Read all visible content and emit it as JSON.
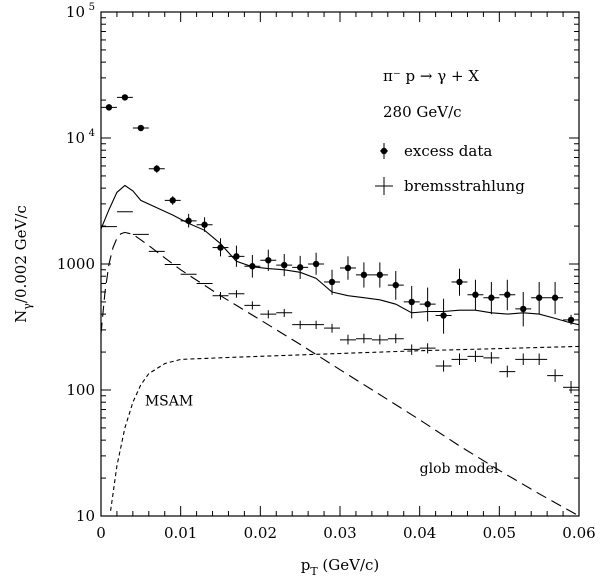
{
  "chart_data": {
    "type": "scatter",
    "title": "",
    "xlabel": "p_T (GeV/c)",
    "ylabel": "N_γ/0.002 GeV/c",
    "xlim": [
      0,
      0.06
    ],
    "ylim": [
      10,
      100000
    ],
    "yscale": "log",
    "x_ticks": [
      {
        "value": 0,
        "label": "0"
      },
      {
        "value": 0.01,
        "label": "0.01"
      },
      {
        "value": 0.02,
        "label": "0.02"
      },
      {
        "value": 0.03,
        "label": "0.03"
      },
      {
        "value": 0.04,
        "label": "0.04"
      },
      {
        "value": 0.05,
        "label": "0.05"
      },
      {
        "value": 0.06,
        "label": "0.06"
      }
    ],
    "y_ticks": [
      {
        "value": 10,
        "label": "10"
      },
      {
        "value": 100,
        "label": "100"
      },
      {
        "value": 1000,
        "label": "1000"
      },
      {
        "value": 10000,
        "label": "10",
        "exp": "4"
      },
      {
        "value": 100000,
        "label": "10",
        "exp": "5"
      }
    ],
    "legend": {
      "placement": "top-right",
      "lines": [
        "π⁻ p → γ + X",
        "280 GeV/c"
      ],
      "entries": [
        {
          "label": "excess data",
          "marker": "dot-with-errorbar"
        },
        {
          "label": "bremsstrahlung",
          "marker": "cross"
        }
      ]
    },
    "annotations": [
      {
        "text": "MSAM",
        "x": 0.0055,
        "y": 75
      },
      {
        "text": "glob model",
        "x": 0.04,
        "y": 22
      }
    ],
    "series": [
      {
        "name": "excess data",
        "style": "filled-circle",
        "x_err": 0.001,
        "points": [
          {
            "x": 0.001,
            "y": 17500,
            "lo": 16500,
            "hi": 18500
          },
          {
            "x": 0.003,
            "y": 21000,
            "lo": 20000,
            "hi": 22000
          },
          {
            "x": 0.005,
            "y": 12000,
            "lo": 11400,
            "hi": 12600
          },
          {
            "x": 0.007,
            "y": 5700,
            "lo": 5300,
            "hi": 6100
          },
          {
            "x": 0.009,
            "y": 3200,
            "lo": 2950,
            "hi": 3450
          },
          {
            "x": 0.011,
            "y": 2200,
            "lo": 1950,
            "hi": 2500
          },
          {
            "x": 0.013,
            "y": 2050,
            "lo": 1800,
            "hi": 2350
          },
          {
            "x": 0.015,
            "y": 1350,
            "lo": 1150,
            "hi": 1600
          },
          {
            "x": 0.017,
            "y": 1150,
            "lo": 950,
            "hi": 1400
          },
          {
            "x": 0.019,
            "y": 960,
            "lo": 780,
            "hi": 1180
          },
          {
            "x": 0.021,
            "y": 1070,
            "lo": 880,
            "hi": 1300
          },
          {
            "x": 0.023,
            "y": 980,
            "lo": 800,
            "hi": 1200
          },
          {
            "x": 0.025,
            "y": 940,
            "lo": 760,
            "hi": 1160
          },
          {
            "x": 0.027,
            "y": 1000,
            "lo": 820,
            "hi": 1230
          },
          {
            "x": 0.029,
            "y": 720,
            "lo": 570,
            "hi": 900
          },
          {
            "x": 0.031,
            "y": 930,
            "lo": 750,
            "hi": 1150
          },
          {
            "x": 0.033,
            "y": 820,
            "lo": 650,
            "hi": 1030
          },
          {
            "x": 0.035,
            "y": 820,
            "lo": 650,
            "hi": 1030
          },
          {
            "x": 0.037,
            "y": 680,
            "lo": 520,
            "hi": 880
          },
          {
            "x": 0.039,
            "y": 500,
            "lo": 370,
            "hi": 670
          },
          {
            "x": 0.041,
            "y": 480,
            "lo": 350,
            "hi": 650
          },
          {
            "x": 0.043,
            "y": 390,
            "lo": 280,
            "hi": 530
          },
          {
            "x": 0.045,
            "y": 720,
            "lo": 560,
            "hi": 920
          },
          {
            "x": 0.047,
            "y": 570,
            "lo": 430,
            "hi": 750
          },
          {
            "x": 0.049,
            "y": 540,
            "lo": 400,
            "hi": 720
          },
          {
            "x": 0.051,
            "y": 570,
            "lo": 430,
            "hi": 750
          },
          {
            "x": 0.053,
            "y": 440,
            "lo": 320,
            "hi": 600
          },
          {
            "x": 0.055,
            "y": 540,
            "lo": 400,
            "hi": 720
          },
          {
            "x": 0.057,
            "y": 540,
            "lo": 400,
            "hi": 720
          },
          {
            "x": 0.059,
            "y": 360,
            "lo": 330,
            "hi": 395
          }
        ]
      },
      {
        "name": "bremsstrahlung",
        "style": "cross",
        "x_err": 0.001,
        "points": [
          {
            "x": 0.001,
            "y": 1980,
            "lo": 1980,
            "hi": 1980
          },
          {
            "x": 0.003,
            "y": 2600,
            "lo": 2600,
            "hi": 2600
          },
          {
            "x": 0.005,
            "y": 1720,
            "lo": 1720,
            "hi": 1720
          },
          {
            "x": 0.007,
            "y": 1260,
            "lo": 1260,
            "hi": 1260
          },
          {
            "x": 0.009,
            "y": 990,
            "lo": 990,
            "hi": 990
          },
          {
            "x": 0.011,
            "y": 830,
            "lo": 830,
            "hi": 830
          },
          {
            "x": 0.013,
            "y": 700,
            "lo": 700,
            "hi": 700
          },
          {
            "x": 0.015,
            "y": 560,
            "lo": 520,
            "hi": 600
          },
          {
            "x": 0.017,
            "y": 580,
            "lo": 540,
            "hi": 620
          },
          {
            "x": 0.019,
            "y": 470,
            "lo": 435,
            "hi": 505
          },
          {
            "x": 0.021,
            "y": 400,
            "lo": 370,
            "hi": 430
          },
          {
            "x": 0.023,
            "y": 410,
            "lo": 380,
            "hi": 440
          },
          {
            "x": 0.025,
            "y": 330,
            "lo": 305,
            "hi": 355
          },
          {
            "x": 0.027,
            "y": 330,
            "lo": 305,
            "hi": 355
          },
          {
            "x": 0.029,
            "y": 310,
            "lo": 285,
            "hi": 335
          },
          {
            "x": 0.031,
            "y": 250,
            "lo": 230,
            "hi": 275
          },
          {
            "x": 0.033,
            "y": 255,
            "lo": 235,
            "hi": 280
          },
          {
            "x": 0.035,
            "y": 250,
            "lo": 230,
            "hi": 275
          },
          {
            "x": 0.037,
            "y": 255,
            "lo": 235,
            "hi": 280
          },
          {
            "x": 0.039,
            "y": 210,
            "lo": 190,
            "hi": 230
          },
          {
            "x": 0.041,
            "y": 215,
            "lo": 195,
            "hi": 235
          },
          {
            "x": 0.043,
            "y": 155,
            "lo": 140,
            "hi": 172
          },
          {
            "x": 0.045,
            "y": 175,
            "lo": 158,
            "hi": 195
          },
          {
            "x": 0.047,
            "y": 185,
            "lo": 167,
            "hi": 205
          },
          {
            "x": 0.049,
            "y": 180,
            "lo": 162,
            "hi": 200
          },
          {
            "x": 0.051,
            "y": 140,
            "lo": 126,
            "hi": 156
          },
          {
            "x": 0.053,
            "y": 175,
            "lo": 158,
            "hi": 195
          },
          {
            "x": 0.055,
            "y": 175,
            "lo": 158,
            "hi": 195
          },
          {
            "x": 0.057,
            "y": 130,
            "lo": 116,
            "hi": 146
          },
          {
            "x": 0.059,
            "y": 105,
            "lo": 94,
            "hi": 118
          }
        ]
      },
      {
        "name": "model total",
        "style": "solid",
        "points": [
          {
            "x": 0.0,
            "y": 1900
          },
          {
            "x": 0.001,
            "y": 2700
          },
          {
            "x": 0.002,
            "y": 3700
          },
          {
            "x": 0.003,
            "y": 4200
          },
          {
            "x": 0.004,
            "y": 3800
          },
          {
            "x": 0.005,
            "y": 3200
          },
          {
            "x": 0.007,
            "y": 2800
          },
          {
            "x": 0.009,
            "y": 2450
          },
          {
            "x": 0.011,
            "y": 2100
          },
          {
            "x": 0.013,
            "y": 1850
          },
          {
            "x": 0.015,
            "y": 1450
          },
          {
            "x": 0.017,
            "y": 1050
          },
          {
            "x": 0.019,
            "y": 950
          },
          {
            "x": 0.021,
            "y": 920
          },
          {
            "x": 0.023,
            "y": 900
          },
          {
            "x": 0.025,
            "y": 860
          },
          {
            "x": 0.027,
            "y": 770
          },
          {
            "x": 0.029,
            "y": 600
          },
          {
            "x": 0.031,
            "y": 560
          },
          {
            "x": 0.033,
            "y": 540
          },
          {
            "x": 0.035,
            "y": 520
          },
          {
            "x": 0.037,
            "y": 480
          },
          {
            "x": 0.039,
            "y": 410
          },
          {
            "x": 0.041,
            "y": 420
          },
          {
            "x": 0.043,
            "y": 420
          },
          {
            "x": 0.045,
            "y": 430
          },
          {
            "x": 0.047,
            "y": 430
          },
          {
            "x": 0.049,
            "y": 410
          },
          {
            "x": 0.051,
            "y": 400
          },
          {
            "x": 0.053,
            "y": 410
          },
          {
            "x": 0.055,
            "y": 400
          },
          {
            "x": 0.057,
            "y": 370
          },
          {
            "x": 0.059,
            "y": 340
          },
          {
            "x": 0.06,
            "y": 330
          }
        ]
      },
      {
        "name": "glob model",
        "style": "long-dash",
        "points": [
          {
            "x": 0.0,
            "y": 280
          },
          {
            "x": 0.0005,
            "y": 600
          },
          {
            "x": 0.001,
            "y": 1000
          },
          {
            "x": 0.0015,
            "y": 1350
          },
          {
            "x": 0.002,
            "y": 1600
          },
          {
            "x": 0.0025,
            "y": 1740
          },
          {
            "x": 0.003,
            "y": 1780
          },
          {
            "x": 0.004,
            "y": 1720
          },
          {
            "x": 0.006,
            "y": 1400
          },
          {
            "x": 0.008,
            "y": 1120
          },
          {
            "x": 0.01,
            "y": 900
          },
          {
            "x": 0.015,
            "y": 560
          },
          {
            "x": 0.02,
            "y": 360
          },
          {
            "x": 0.025,
            "y": 230
          },
          {
            "x": 0.03,
            "y": 145
          },
          {
            "x": 0.035,
            "y": 92
          },
          {
            "x": 0.04,
            "y": 58
          },
          {
            "x": 0.045,
            "y": 36
          },
          {
            "x": 0.05,
            "y": 23
          },
          {
            "x": 0.055,
            "y": 15
          },
          {
            "x": 0.06,
            "y": 9.5
          }
        ]
      },
      {
        "name": "MSAM",
        "style": "short-dash",
        "points": [
          {
            "x": 0.0012,
            "y": 11
          },
          {
            "x": 0.0015,
            "y": 15
          },
          {
            "x": 0.002,
            "y": 25
          },
          {
            "x": 0.003,
            "y": 50
          },
          {
            "x": 0.004,
            "y": 80
          },
          {
            "x": 0.005,
            "y": 110
          },
          {
            "x": 0.006,
            "y": 135
          },
          {
            "x": 0.008,
            "y": 162
          },
          {
            "x": 0.01,
            "y": 175
          },
          {
            "x": 0.015,
            "y": 180
          },
          {
            "x": 0.02,
            "y": 185
          },
          {
            "x": 0.03,
            "y": 195
          },
          {
            "x": 0.04,
            "y": 205
          },
          {
            "x": 0.05,
            "y": 213
          },
          {
            "x": 0.06,
            "y": 222
          }
        ]
      }
    ]
  }
}
